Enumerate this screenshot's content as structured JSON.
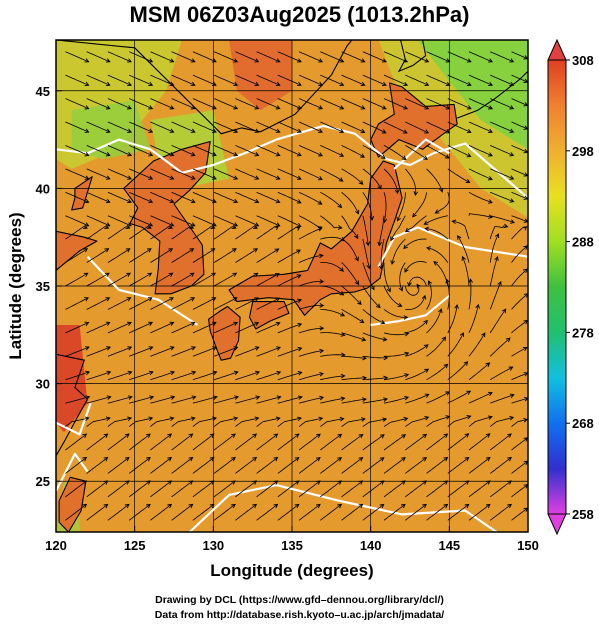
{
  "chart_data": {
    "type": "heatmap",
    "title": "MSM 06Z03Aug2025 (1013.2hPa)",
    "xlabel": "Longitude (degrees)",
    "ylabel": "Latitude  (degrees)",
    "xlim": [
      120,
      150
    ],
    "ylim": [
      22.4,
      47.6
    ],
    "x_ticks": [
      120,
      125,
      130,
      135,
      140,
      145,
      150
    ],
    "x_tick_labels": [
      "120",
      "125",
      "130",
      "135",
      "140",
      "145",
      "150"
    ],
    "y_ticks": [
      25,
      30,
      35,
      40,
      45
    ],
    "y_tick_labels": [
      "25",
      "30",
      "35",
      "40",
      "45"
    ],
    "grid": true,
    "colorbar": {
      "min": 258,
      "max": 308,
      "ticks": [
        258,
        268,
        278,
        288,
        298,
        308
      ],
      "tick_labels": [
        "258",
        "268",
        "278",
        "288",
        "298",
        "308"
      ],
      "extend": "both",
      "colors": [
        "#e040e0",
        "#3030d0",
        "#1070f0",
        "#10c0e0",
        "#20c070",
        "#40c040",
        "#a0e020",
        "#e8e020",
        "#f0b030",
        "#f08030",
        "#e04020"
      ]
    },
    "field": "temperature (K)",
    "vortex_center": [
      142.8,
      34.8
    ]
  },
  "credits": {
    "line1": "Drawing by DCL (https://www.gfd–dennou.org/library/dcl/)",
    "line2": "Data from http://database.rish.kyoto–u.ac.jp/arch/jmadata/"
  }
}
